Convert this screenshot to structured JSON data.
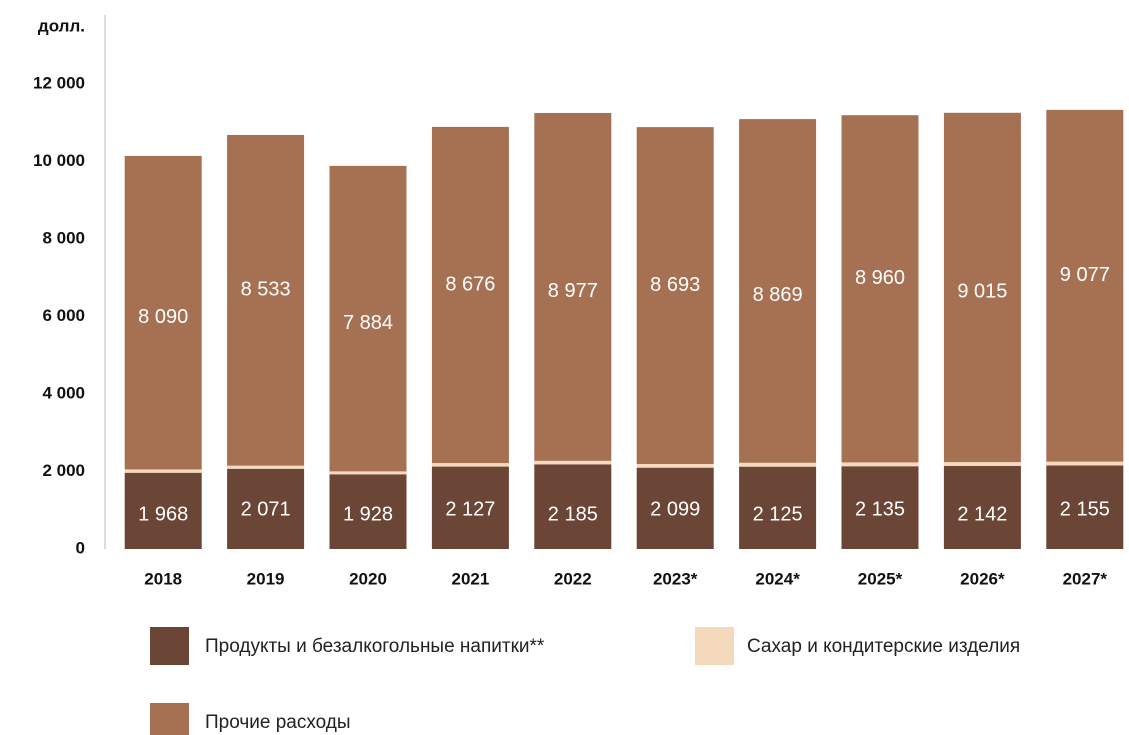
{
  "chart_data": {
    "type": "bar",
    "stacked": true,
    "y_label": "долл.",
    "categories": [
      "2018",
      "2019",
      "2020",
      "2021",
      "2022",
      "2023*",
      "2024*",
      "2025*",
      "2026*",
      "2027*"
    ],
    "series": [
      {
        "name": "Продукты и безалкогольные напитки**",
        "color": "#6b4535",
        "values": [
          1968,
          2071,
          1928,
          2127,
          2185,
          2099,
          2125,
          2135,
          2142,
          2155
        ],
        "value_labels": [
          "1 968",
          "2 071",
          "1 928",
          "2 127",
          "2 185",
          "2 099",
          "2 125",
          "2 135",
          "2 142",
          "2 155"
        ]
      },
      {
        "name": "Сахар и кондитерские изделия",
        "color": "#f5d9bc",
        "values": [
          85,
          80,
          75,
          90,
          90,
          95,
          100,
          100,
          100,
          100
        ]
      },
      {
        "name": "Прочие расходы",
        "color": "#a57152",
        "values": [
          8090,
          8533,
          7884,
          8676,
          8977,
          8693,
          8869,
          8960,
          9015,
          9077
        ],
        "value_labels": [
          "8 090",
          "8 533",
          "7 884",
          "8 676",
          "8 977",
          "8 693",
          "8 869",
          "8 960",
          "9 015",
          "9 077"
        ]
      }
    ],
    "ylim": [
      0,
      12000
    ],
    "yticks": [
      0,
      {
        "value": 2000,
        "label": "2 000"
      },
      {
        "value": 4000,
        "label": "4 000"
      },
      {
        "value": 6000,
        "label": "6 000"
      },
      {
        "value": 8000,
        "label": "8 000"
      },
      {
        "value": 10000,
        "label": "10 000"
      },
      {
        "value": 12000,
        "label": "12 000"
      }
    ],
    "grid": false
  }
}
